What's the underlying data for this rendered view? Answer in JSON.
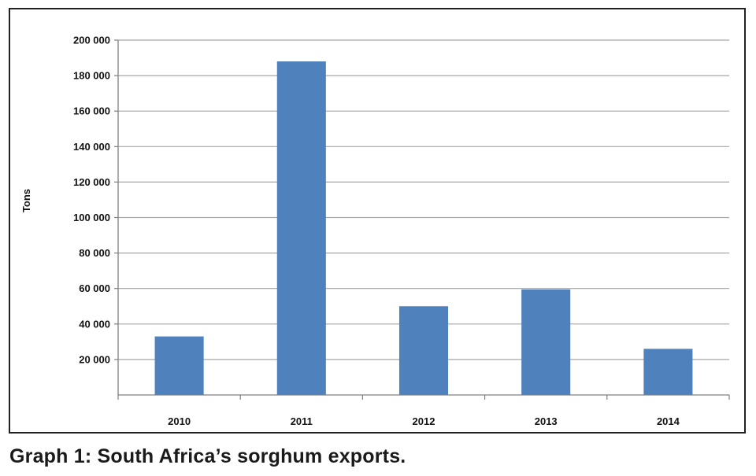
{
  "caption": "Graph 1: South Africa’s sorghum exports.",
  "colors": {
    "bar": "#4f81bd",
    "gridline": "#a6a6a6",
    "axis": "#808080",
    "frame": "#222222"
  },
  "chart_data": {
    "type": "bar",
    "title": "",
    "xlabel": "",
    "ylabel": "Tons",
    "categories": [
      "2010",
      "2011",
      "2012",
      "2013",
      "2014"
    ],
    "values": [
      33000,
      188000,
      50000,
      59500,
      26000
    ],
    "ylim": [
      0,
      200000
    ],
    "yticks": [
      20000,
      40000,
      60000,
      80000,
      100000,
      120000,
      140000,
      160000,
      180000,
      200000
    ],
    "ytick_labels": [
      "20 000",
      "40 000",
      "60 000",
      "80 000",
      "100 000",
      "120 000",
      "140 000",
      "160 000",
      "180 000",
      "200 000"
    ],
    "grid": true,
    "legend": "none"
  }
}
